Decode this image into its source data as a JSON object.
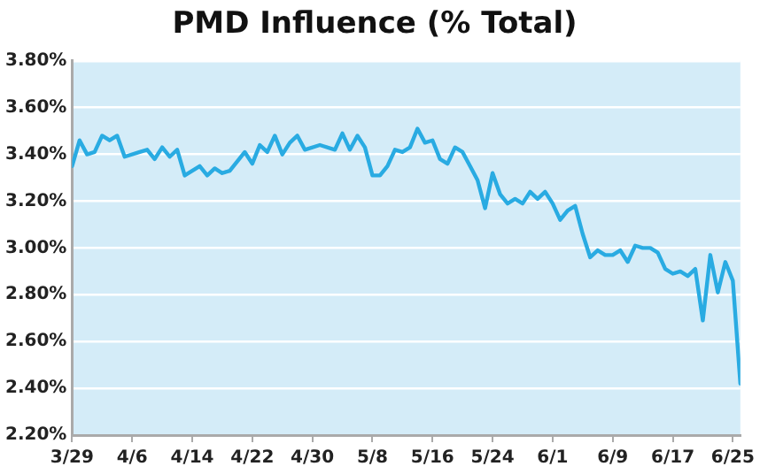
{
  "chart_data": {
    "type": "line",
    "title": "PMD Influence (% Total)",
    "x": [
      "--03-29",
      "--03-30",
      "--03-31",
      "--04-01",
      "--04-02",
      "--04-03",
      "--04-04",
      "--04-05",
      "--04-07",
      "--04-08",
      "--04-09",
      "--04-10",
      "--04-11",
      "--04-12",
      "--04-13",
      "--04-15",
      "--04-16",
      "--04-17",
      "--04-18",
      "--04-19",
      "--04-21",
      "--04-22",
      "--04-23",
      "--04-24",
      "--04-25",
      "--04-26",
      "--04-27",
      "--04-28",
      "--04-29",
      "--05-01",
      "--05-03",
      "--05-04",
      "--05-05",
      "--05-06",
      "--05-07",
      "--05-08",
      "--05-09",
      "--05-10",
      "--05-11",
      "--05-12",
      "--05-13",
      "--05-14",
      "--05-15",
      "--05-16",
      "--05-17",
      "--05-18",
      "--05-19",
      "--05-20",
      "--05-21",
      "--05-22",
      "--05-23",
      "--05-24",
      "--05-25",
      "--05-26",
      "--05-27",
      "--05-28",
      "--05-29",
      "--05-30",
      "--05-31",
      "--06-01",
      "--06-02",
      "--06-03",
      "--06-04",
      "--06-05",
      "--06-06",
      "--06-07",
      "--06-08",
      "--06-09",
      "--06-10",
      "--06-11",
      "--06-12",
      "--06-13",
      "--06-14",
      "--06-15",
      "--06-16",
      "--06-17",
      "--06-18",
      "--06-19",
      "--06-20",
      "--06-21",
      "--06-22",
      "--06-23",
      "--06-24",
      "--06-25",
      "--06-26"
    ],
    "series": [
      {
        "color": "#29abe2",
        "values": [
          3.35,
          3.46,
          3.4,
          3.41,
          3.48,
          3.46,
          3.48,
          3.39,
          3.41,
          3.42,
          3.38,
          3.43,
          3.39,
          3.42,
          3.31,
          3.35,
          3.31,
          3.34,
          3.32,
          3.33,
          3.41,
          3.36,
          3.44,
          3.41,
          3.48,
          3.4,
          3.45,
          3.48,
          3.42,
          3.44,
          3.42,
          3.49,
          3.42,
          3.48,
          3.43,
          3.31,
          3.31,
          3.35,
          3.42,
          3.41,
          3.43,
          3.51,
          3.45,
          3.46,
          3.38,
          3.36,
          3.43,
          3.41,
          3.35,
          3.29,
          3.17,
          3.32,
          3.23,
          3.19,
          3.21,
          3.19,
          3.24,
          3.21,
          3.24,
          3.19,
          3.12,
          3.16,
          3.18,
          3.06,
          2.96,
          2.99,
          2.97,
          2.97,
          2.99,
          2.94,
          3.01,
          3.0,
          3.0,
          2.98,
          2.91,
          2.89,
          2.9,
          2.88,
          2.91,
          2.69,
          2.97,
          2.81,
          2.94,
          2.86,
          2.42
        ]
      }
    ],
    "xlim": [
      "--03-29",
      "--06-26"
    ],
    "xticks": [
      {
        "value": "--03-29",
        "label": "3/29"
      },
      {
        "value": "--04-06",
        "label": "4/6"
      },
      {
        "value": "--04-14",
        "label": "4/14"
      },
      {
        "value": "--04-22",
        "label": "4/22"
      },
      {
        "value": "--04-30",
        "label": "4/30"
      },
      {
        "value": "--05-08",
        "label": "5/8"
      },
      {
        "value": "--05-16",
        "label": "5/16"
      },
      {
        "value": "--05-24",
        "label": "5/24"
      },
      {
        "value": "--06-01",
        "label": "6/1"
      },
      {
        "value": "--06-09",
        "label": "6/9"
      },
      {
        "value": "--06-17",
        "label": "6/17"
      },
      {
        "value": "--06-25",
        "label": "6/25"
      }
    ],
    "ylim": [
      2.2,
      3.8
    ],
    "yticks": [
      {
        "value": 2.2,
        "label": "2.20%"
      },
      {
        "value": 2.4,
        "label": "2.40%"
      },
      {
        "value": 2.6,
        "label": "2.60%"
      },
      {
        "value": 2.8,
        "label": "2.80%"
      },
      {
        "value": 3.0,
        "label": "3.00%"
      },
      {
        "value": 3.2,
        "label": "3.20%"
      },
      {
        "value": 3.4,
        "label": "3.40%"
      },
      {
        "value": 3.6,
        "label": "3.60%"
      },
      {
        "value": 3.8,
        "label": "3.80%"
      }
    ],
    "grid": "y",
    "legend": false,
    "marker": "none",
    "line_style": "solid"
  }
}
